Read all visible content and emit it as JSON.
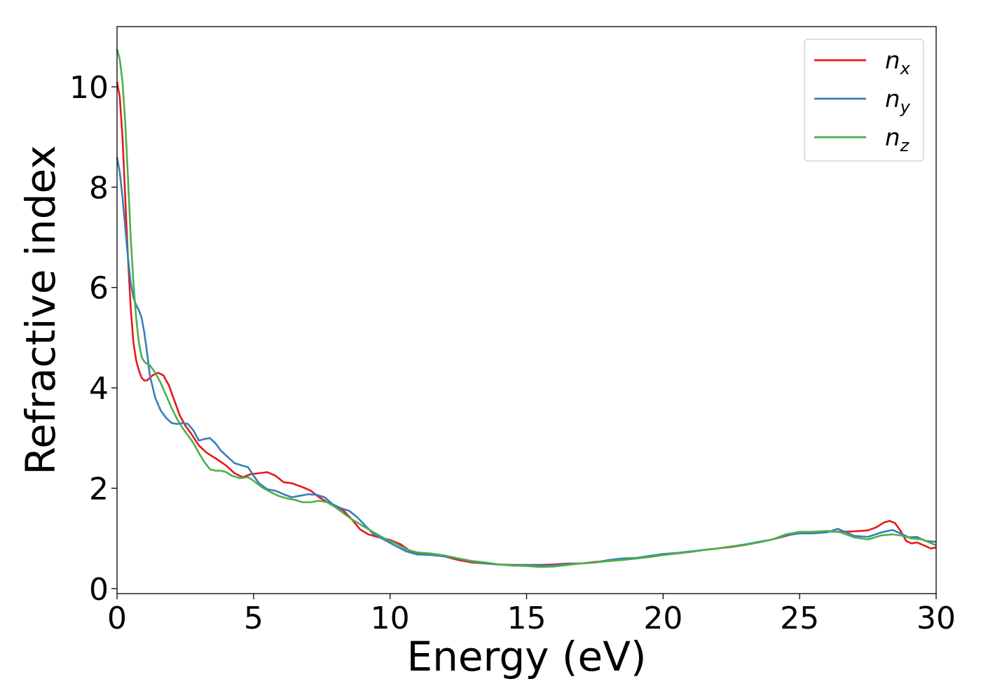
{
  "chart_data": {
    "type": "line",
    "title": "",
    "xlabel": "Energy (eV)",
    "ylabel": "Refractive index",
    "xlim": [
      0,
      30
    ],
    "ylim": [
      -0.1,
      11.2
    ],
    "xticks": [
      0,
      5,
      10,
      15,
      20,
      25,
      30
    ],
    "yticks": [
      0,
      2,
      4,
      6,
      8,
      10
    ],
    "grid": false,
    "legend_position": "top-right",
    "series": [
      {
        "name": "x",
        "color": "#e41a1c",
        "points": [
          [
            0,
            10.1
          ],
          [
            0.1,
            9.8
          ],
          [
            0.2,
            9.0
          ],
          [
            0.3,
            7.8
          ],
          [
            0.4,
            6.6
          ],
          [
            0.5,
            5.6
          ],
          [
            0.6,
            4.9
          ],
          [
            0.7,
            4.55
          ],
          [
            0.8,
            4.35
          ],
          [
            0.9,
            4.2
          ],
          [
            1.0,
            4.15
          ],
          [
            1.1,
            4.15
          ],
          [
            1.2,
            4.2
          ],
          [
            1.3,
            4.25
          ],
          [
            1.5,
            4.3
          ],
          [
            1.7,
            4.25
          ],
          [
            1.9,
            4.05
          ],
          [
            2.1,
            3.75
          ],
          [
            2.3,
            3.45
          ],
          [
            2.5,
            3.25
          ],
          [
            2.7,
            3.1
          ],
          [
            3.0,
            2.85
          ],
          [
            3.3,
            2.7
          ],
          [
            3.6,
            2.6
          ],
          [
            4.0,
            2.45
          ],
          [
            4.3,
            2.3
          ],
          [
            4.6,
            2.22
          ],
          [
            4.9,
            2.28
          ],
          [
            5.2,
            2.3
          ],
          [
            5.5,
            2.32
          ],
          [
            5.8,
            2.25
          ],
          [
            6.1,
            2.12
          ],
          [
            6.4,
            2.1
          ],
          [
            6.8,
            2.02
          ],
          [
            7.1,
            1.95
          ],
          [
            7.4,
            1.82
          ],
          [
            7.7,
            1.72
          ],
          [
            8.0,
            1.65
          ],
          [
            8.3,
            1.55
          ],
          [
            8.6,
            1.38
          ],
          [
            8.9,
            1.18
          ],
          [
            9.2,
            1.08
          ],
          [
            9.6,
            1.02
          ],
          [
            10.0,
            0.97
          ],
          [
            10.4,
            0.88
          ],
          [
            10.8,
            0.72
          ],
          [
            11.2,
            0.7
          ],
          [
            11.6,
            0.68
          ],
          [
            12.0,
            0.64
          ],
          [
            12.5,
            0.57
          ],
          [
            13.0,
            0.52
          ],
          [
            13.5,
            0.5
          ],
          [
            14.0,
            0.48
          ],
          [
            14.5,
            0.47
          ],
          [
            15.0,
            0.47
          ],
          [
            15.5,
            0.47
          ],
          [
            16.0,
            0.48
          ],
          [
            16.5,
            0.5
          ],
          [
            17.0,
            0.5
          ],
          [
            17.5,
            0.53
          ],
          [
            18.0,
            0.55
          ],
          [
            18.5,
            0.57
          ],
          [
            19.0,
            0.6
          ],
          [
            19.5,
            0.63
          ],
          [
            20.0,
            0.67
          ],
          [
            20.5,
            0.7
          ],
          [
            21.0,
            0.73
          ],
          [
            21.5,
            0.77
          ],
          [
            22.0,
            0.8
          ],
          [
            22.5,
            0.83
          ],
          [
            23.0,
            0.87
          ],
          [
            23.5,
            0.92
          ],
          [
            24.0,
            0.98
          ],
          [
            24.5,
            1.05
          ],
          [
            25.0,
            1.12
          ],
          [
            25.5,
            1.13
          ],
          [
            26.0,
            1.14
          ],
          [
            26.5,
            1.13
          ],
          [
            27.0,
            1.14
          ],
          [
            27.5,
            1.16
          ],
          [
            27.8,
            1.22
          ],
          [
            28.1,
            1.32
          ],
          [
            28.3,
            1.35
          ],
          [
            28.5,
            1.3
          ],
          [
            28.7,
            1.15
          ],
          [
            28.9,
            0.95
          ],
          [
            29.1,
            0.9
          ],
          [
            29.3,
            0.92
          ],
          [
            29.6,
            0.85
          ],
          [
            29.8,
            0.8
          ],
          [
            30.0,
            0.82
          ]
        ]
      },
      {
        "name": "y",
        "color": "#377eb8",
        "points": [
          [
            0,
            8.6
          ],
          [
            0.1,
            8.3
          ],
          [
            0.2,
            7.8
          ],
          [
            0.3,
            7.2
          ],
          [
            0.4,
            6.6
          ],
          [
            0.5,
            6.1
          ],
          [
            0.6,
            5.8
          ],
          [
            0.7,
            5.65
          ],
          [
            0.8,
            5.55
          ],
          [
            0.9,
            5.4
          ],
          [
            1.0,
            5.1
          ],
          [
            1.1,
            4.7
          ],
          [
            1.2,
            4.25
          ],
          [
            1.4,
            3.8
          ],
          [
            1.6,
            3.55
          ],
          [
            1.8,
            3.4
          ],
          [
            2.0,
            3.3
          ],
          [
            2.2,
            3.28
          ],
          [
            2.4,
            3.3
          ],
          [
            2.6,
            3.28
          ],
          [
            2.8,
            3.15
          ],
          [
            3.0,
            2.95
          ],
          [
            3.2,
            2.98
          ],
          [
            3.4,
            3.0
          ],
          [
            3.6,
            2.9
          ],
          [
            3.8,
            2.75
          ],
          [
            4.0,
            2.65
          ],
          [
            4.3,
            2.5
          ],
          [
            4.6,
            2.45
          ],
          [
            4.8,
            2.42
          ],
          [
            5.0,
            2.25
          ],
          [
            5.2,
            2.1
          ],
          [
            5.5,
            1.98
          ],
          [
            5.8,
            1.95
          ],
          [
            6.1,
            1.88
          ],
          [
            6.4,
            1.82
          ],
          [
            6.7,
            1.85
          ],
          [
            7.0,
            1.88
          ],
          [
            7.3,
            1.87
          ],
          [
            7.6,
            1.82
          ],
          [
            7.9,
            1.68
          ],
          [
            8.2,
            1.6
          ],
          [
            8.5,
            1.55
          ],
          [
            8.8,
            1.42
          ],
          [
            9.1,
            1.25
          ],
          [
            9.4,
            1.08
          ],
          [
            9.8,
            0.97
          ],
          [
            10.2,
            0.85
          ],
          [
            10.6,
            0.74
          ],
          [
            11.0,
            0.68
          ],
          [
            11.5,
            0.67
          ],
          [
            12.0,
            0.64
          ],
          [
            12.5,
            0.6
          ],
          [
            13.0,
            0.54
          ],
          [
            13.5,
            0.5
          ],
          [
            14.0,
            0.48
          ],
          [
            14.5,
            0.46
          ],
          [
            15.0,
            0.47
          ],
          [
            15.5,
            0.46
          ],
          [
            16.0,
            0.46
          ],
          [
            16.5,
            0.49
          ],
          [
            17.0,
            0.5
          ],
          [
            17.5,
            0.52
          ],
          [
            18.0,
            0.57
          ],
          [
            18.5,
            0.6
          ],
          [
            19.0,
            0.61
          ],
          [
            19.5,
            0.65
          ],
          [
            20.0,
            0.69
          ],
          [
            20.5,
            0.71
          ],
          [
            21.0,
            0.74
          ],
          [
            21.5,
            0.77
          ],
          [
            22.0,
            0.8
          ],
          [
            22.5,
            0.84
          ],
          [
            23.0,
            0.88
          ],
          [
            23.5,
            0.93
          ],
          [
            24.0,
            0.98
          ],
          [
            24.5,
            1.06
          ],
          [
            25.0,
            1.1
          ],
          [
            25.5,
            1.1
          ],
          [
            26.0,
            1.12
          ],
          [
            26.4,
            1.19
          ],
          [
            26.7,
            1.12
          ],
          [
            27.0,
            1.05
          ],
          [
            27.5,
            1.03
          ],
          [
            28.0,
            1.12
          ],
          [
            28.4,
            1.17
          ],
          [
            28.7,
            1.1
          ],
          [
            29.0,
            1.02
          ],
          [
            29.3,
            1.03
          ],
          [
            29.6,
            0.95
          ],
          [
            30.0,
            0.93
          ]
        ]
      },
      {
        "name": "z",
        "color": "#4daf4a",
        "points": [
          [
            0,
            10.75
          ],
          [
            0.1,
            10.55
          ],
          [
            0.2,
            10.1
          ],
          [
            0.3,
            9.3
          ],
          [
            0.4,
            8.2
          ],
          [
            0.5,
            7.0
          ],
          [
            0.6,
            6.1
          ],
          [
            0.7,
            5.4
          ],
          [
            0.8,
            4.9
          ],
          [
            0.9,
            4.62
          ],
          [
            1.0,
            4.52
          ],
          [
            1.1,
            4.48
          ],
          [
            1.2,
            4.45
          ],
          [
            1.4,
            4.3
          ],
          [
            1.6,
            4.1
          ],
          [
            1.8,
            3.85
          ],
          [
            2.0,
            3.6
          ],
          [
            2.2,
            3.38
          ],
          [
            2.4,
            3.2
          ],
          [
            2.6,
            3.05
          ],
          [
            2.8,
            2.9
          ],
          [
            3.0,
            2.7
          ],
          [
            3.2,
            2.52
          ],
          [
            3.4,
            2.38
          ],
          [
            3.6,
            2.35
          ],
          [
            3.8,
            2.35
          ],
          [
            4.0,
            2.32
          ],
          [
            4.2,
            2.25
          ],
          [
            4.5,
            2.2
          ],
          [
            4.8,
            2.22
          ],
          [
            5.0,
            2.15
          ],
          [
            5.3,
            2.02
          ],
          [
            5.6,
            1.93
          ],
          [
            5.9,
            1.85
          ],
          [
            6.2,
            1.8
          ],
          [
            6.5,
            1.77
          ],
          [
            6.8,
            1.72
          ],
          [
            7.1,
            1.72
          ],
          [
            7.4,
            1.75
          ],
          [
            7.7,
            1.72
          ],
          [
            8.0,
            1.62
          ],
          [
            8.3,
            1.5
          ],
          [
            8.6,
            1.38
          ],
          [
            9.0,
            1.25
          ],
          [
            9.4,
            1.12
          ],
          [
            9.8,
            1.0
          ],
          [
            10.2,
            0.9
          ],
          [
            10.6,
            0.78
          ],
          [
            11.0,
            0.72
          ],
          [
            11.5,
            0.7
          ],
          [
            12.0,
            0.66
          ],
          [
            12.5,
            0.6
          ],
          [
            13.0,
            0.55
          ],
          [
            13.5,
            0.52
          ],
          [
            14.0,
            0.48
          ],
          [
            14.5,
            0.46
          ],
          [
            15.0,
            0.45
          ],
          [
            15.5,
            0.43
          ],
          [
            16.0,
            0.44
          ],
          [
            16.5,
            0.47
          ],
          [
            17.0,
            0.5
          ],
          [
            17.5,
            0.52
          ],
          [
            18.0,
            0.55
          ],
          [
            18.5,
            0.57
          ],
          [
            19.0,
            0.6
          ],
          [
            19.5,
            0.63
          ],
          [
            20.0,
            0.67
          ],
          [
            20.5,
            0.7
          ],
          [
            21.0,
            0.73
          ],
          [
            21.5,
            0.77
          ],
          [
            22.0,
            0.8
          ],
          [
            22.5,
            0.84
          ],
          [
            23.0,
            0.87
          ],
          [
            23.5,
            0.92
          ],
          [
            24.0,
            0.98
          ],
          [
            24.5,
            1.08
          ],
          [
            25.0,
            1.13
          ],
          [
            25.5,
            1.13
          ],
          [
            26.0,
            1.15
          ],
          [
            26.5,
            1.12
          ],
          [
            27.0,
            1.02
          ],
          [
            27.5,
            0.98
          ],
          [
            28.0,
            1.06
          ],
          [
            28.4,
            1.08
          ],
          [
            28.8,
            1.05
          ],
          [
            29.1,
            1.0
          ],
          [
            29.5,
            0.98
          ],
          [
            30.0,
            0.86
          ]
        ]
      }
    ]
  },
  "legend": {
    "items": [
      {
        "base": "n",
        "sub": "x"
      },
      {
        "base": "n",
        "sub": "y"
      },
      {
        "base": "n",
        "sub": "z"
      }
    ]
  }
}
